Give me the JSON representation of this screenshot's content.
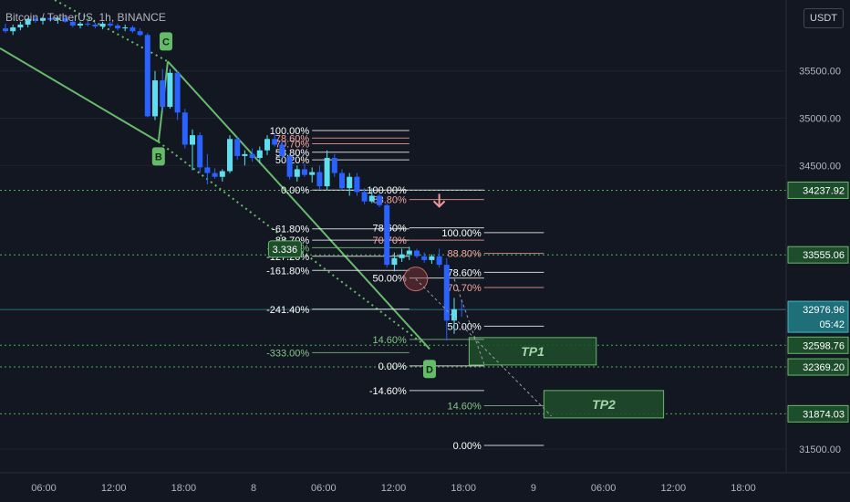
{
  "header": {
    "symbol": "Bitcoin / TetherUS, 1h, BINANCE",
    "currency": "USDT"
  },
  "colors": {
    "background": "#131722",
    "bull": "#5ce0f0",
    "bear": "#2962ff",
    "grid": "#1f2330",
    "pattern": "#66bb6a",
    "fib_white": "#ffffff",
    "fib_red": "#f7a6a0",
    "fib_green": "#81c784",
    "tp_fill": "#1e4d2b",
    "tp_text": "#a5d6a7",
    "arrow": "#ef9a9a",
    "dotted_level": "#4caf50"
  },
  "chart_data": {
    "type": "candlestick",
    "timeframe": "1h",
    "ylim": [
      31250,
      36250
    ],
    "y_ticks": [
      31500,
      34500,
      35000,
      35500
    ],
    "x_ticks": [
      "06:00",
      "12:00",
      "18:00",
      "8",
      "06:00",
      "12:00",
      "18:00",
      "9",
      "06:00",
      "12:00",
      "18:00"
    ],
    "price_labels": [
      {
        "value": "34237.92",
        "price": 34237.92,
        "style": "green"
      },
      {
        "value": "33555.06",
        "price": 33555.06,
        "style": "green"
      },
      {
        "value": "32976.96",
        "price": 32976.96,
        "style": "teal",
        "sub": "05:42"
      },
      {
        "value": "32598.76",
        "price": 32598.76,
        "style": "green"
      },
      {
        "value": "32369.20",
        "price": 32369.2,
        "style": "green"
      },
      {
        "value": "31874.03",
        "price": 31874.03,
        "style": "green"
      }
    ],
    "candles": [
      [
        35950,
        36000,
        35900,
        35920
      ],
      [
        35920,
        35990,
        35880,
        35960
      ],
      [
        35960,
        36020,
        35930,
        35990
      ],
      [
        35990,
        36060,
        35960,
        36050
      ],
      [
        36050,
        36080,
        36010,
        36030
      ],
      [
        36030,
        36070,
        35990,
        36060
      ],
      [
        36060,
        36090,
        36020,
        36040
      ],
      [
        36040,
        36080,
        36000,
        36060
      ],
      [
        36060,
        36090,
        36010,
        36020
      ],
      [
        36020,
        36040,
        35960,
        35980
      ],
      [
        35980,
        36020,
        35950,
        36000
      ],
      [
        36000,
        36030,
        35970,
        35990
      ],
      [
        35990,
        36010,
        35950,
        35970
      ],
      [
        35970,
        36020,
        35940,
        36000
      ],
      [
        36000,
        36020,
        35960,
        35980
      ],
      [
        35980,
        36000,
        35930,
        35950
      ],
      [
        35950,
        35990,
        35920,
        35960
      ],
      [
        35960,
        35980,
        35900,
        35920
      ],
      [
        35920,
        35950,
        35870,
        35880
      ],
      [
        35880,
        35900,
        35010,
        35020
      ],
      [
        35020,
        35500,
        34980,
        35400
      ],
      [
        35400,
        35520,
        35080,
        35120
      ],
      [
        35120,
        35520,
        35100,
        35480
      ],
      [
        35480,
        35500,
        34980,
        35060
      ],
      [
        35060,
        35100,
        34680,
        34720
      ],
      [
        34720,
        34880,
        34450,
        34820
      ],
      [
        34820,
        34850,
        34420,
        34480
      ],
      [
        34480,
        34620,
        34300,
        34420
      ],
      [
        34420,
        34470,
        34360,
        34380
      ],
      [
        34380,
        34460,
        34330,
        34440
      ],
      [
        34440,
        34820,
        34420,
        34780
      ],
      [
        34780,
        34800,
        34560,
        34600
      ],
      [
        34600,
        34660,
        34500,
        34620
      ],
      [
        34620,
        34680,
        34540,
        34580
      ],
      [
        34580,
        34700,
        34520,
        34660
      ],
      [
        34660,
        34820,
        34610,
        34780
      ],
      [
        34780,
        34840,
        34700,
        34720
      ],
      [
        34720,
        34760,
        34580,
        34600
      ],
      [
        34600,
        34620,
        34350,
        34380
      ],
      [
        34380,
        34500,
        34330,
        34460
      ],
      [
        34460,
        34520,
        34380,
        34400
      ],
      [
        34400,
        34480,
        34320,
        34430
      ],
      [
        34430,
        34500,
        34250,
        34280
      ],
      [
        34280,
        34660,
        34240,
        34580
      ],
      [
        34580,
        34620,
        34380,
        34420
      ],
      [
        34420,
        34460,
        34240,
        34260
      ],
      [
        34260,
        34420,
        34180,
        34380
      ],
      [
        34380,
        34420,
        34180,
        34220
      ],
      [
        34220,
        34260,
        34090,
        34120
      ],
      [
        34120,
        34260,
        34100,
        34180
      ],
      [
        34180,
        34200,
        34060,
        34080
      ],
      [
        34080,
        34100,
        33420,
        33450
      ],
      [
        33450,
        33580,
        33380,
        33520
      ],
      [
        33520,
        33620,
        33480,
        33560
      ],
      [
        33560,
        33640,
        33500,
        33600
      ],
      [
        33600,
        33620,
        33520,
        33540
      ],
      [
        33540,
        33580,
        33470,
        33500
      ],
      [
        33500,
        33560,
        33460,
        33540
      ],
      [
        33540,
        33620,
        33420,
        33450
      ],
      [
        33450,
        33520,
        32650,
        32860
      ],
      [
        32860,
        33100,
        32720,
        32980
      ],
      [
        32980,
        33080,
        32900,
        32976
      ]
    ],
    "pattern_points": [
      {
        "label": "B",
        "i": 19,
        "price": 34750
      },
      {
        "label": "C",
        "i": 20,
        "price": 35600
      },
      {
        "label": "D",
        "i": 55,
        "price": 32560
      }
    ],
    "ratio_label": "3.336",
    "fib_sets": [
      {
        "x_from": 41,
        "x_to": 54,
        "levels": [
          {
            "label": "100.00%",
            "price": 34870,
            "color": "white"
          },
          {
            "label": "78.60%",
            "price": 34790,
            "color": "red"
          },
          {
            "label": "70.70%",
            "price": 34730,
            "color": "red"
          },
          {
            "label": "58.80%",
            "price": 34640,
            "color": "white"
          },
          {
            "label": "50.20%",
            "price": 34560,
            "color": "white"
          },
          {
            "label": "0.00%",
            "price": 34240,
            "color": "white"
          },
          {
            "label": "-61.80%",
            "price": 33830,
            "color": "white"
          },
          {
            "label": "-88.70%",
            "price": 33710,
            "color": "white"
          },
          {
            "label": "-113.80%",
            "price": 33630,
            "color": "green"
          },
          {
            "label": "-127.20%",
            "price": 33540,
            "color": "white"
          },
          {
            "label": "-161.80%",
            "price": 33390,
            "color": "white"
          },
          {
            "label": "-241.40%",
            "price": 32980,
            "color": "white"
          },
          {
            "label": "-333.00%",
            "price": 32520,
            "color": "green"
          }
        ]
      },
      {
        "x_from": 54,
        "x_to": 64,
        "levels": [
          {
            "label": "100.00%",
            "price": 34240,
            "color": "white"
          },
          {
            "label": "88.80%",
            "price": 34140,
            "color": "red"
          },
          {
            "label": "78.60%",
            "price": 33840,
            "color": "white"
          },
          {
            "label": "70.70%",
            "price": 33710,
            "color": "red"
          },
          {
            "label": "50.00%",
            "price": 33310,
            "color": "white"
          },
          {
            "label": "14.60%",
            "price": 32660,
            "color": "green"
          },
          {
            "label": "0.00%",
            "price": 32380,
            "color": "white"
          },
          {
            "label": "-14.60%",
            "price": 32120,
            "color": "white"
          }
        ]
      },
      {
        "x_from": 64,
        "x_to": 72,
        "levels": [
          {
            "label": "100.00%",
            "price": 33790,
            "color": "white"
          },
          {
            "label": "88.80%",
            "price": 33570,
            "color": "red"
          },
          {
            "label": "78.60%",
            "price": 33370,
            "color": "white"
          },
          {
            "label": "70.70%",
            "price": 33210,
            "color": "red"
          },
          {
            "label": "50.00%",
            "price": 32800,
            "color": "white"
          },
          {
            "label": "14.60%",
            "price": 31960,
            "color": "green"
          },
          {
            "label": "0.00%",
            "price": 31540,
            "color": "white"
          }
        ]
      }
    ],
    "targets": [
      {
        "label": "TP1",
        "top": 32680,
        "bottom": 32390,
        "x_from": 62,
        "x_to": 79
      },
      {
        "label": "TP2",
        "top": 32120,
        "bottom": 31830,
        "x_from": 72,
        "x_to": 88
      }
    ]
  }
}
